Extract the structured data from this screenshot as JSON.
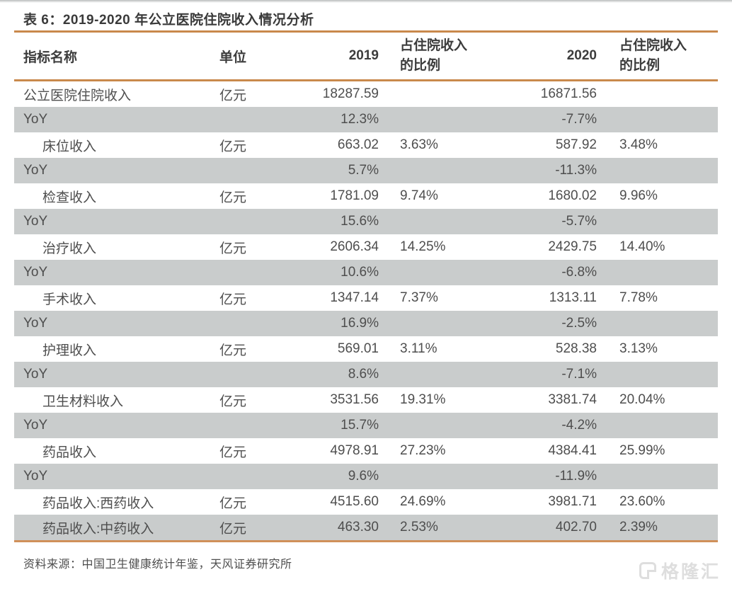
{
  "table": {
    "title": "表 6：2019-2020 年公立医院住院收入情况分析",
    "columns": [
      "指标名称",
      "单位",
      "2019",
      "占住院收入的比例",
      "2020",
      "占住院收入的比例"
    ],
    "rows": [
      {
        "name": "公立医院住院收入",
        "indent": false,
        "unit": "亿元",
        "v2019": "18287.59",
        "p2019": "",
        "v2020": "16871.56",
        "p2020": "",
        "shaded": false
      },
      {
        "name": "YoY",
        "indent": false,
        "unit": "",
        "v2019": "12.3%",
        "p2019": "",
        "v2020": "-7.7%",
        "p2020": "",
        "shaded": true
      },
      {
        "name": "床位收入",
        "indent": true,
        "unit": "亿元",
        "v2019": "663.02",
        "p2019": "3.63%",
        "v2020": "587.92",
        "p2020": "3.48%",
        "shaded": false
      },
      {
        "name": "YoY",
        "indent": false,
        "unit": "",
        "v2019": "5.7%",
        "p2019": "",
        "v2020": "-11.3%",
        "p2020": "",
        "shaded": true
      },
      {
        "name": "检查收入",
        "indent": true,
        "unit": "亿元",
        "v2019": "1781.09",
        "p2019": "9.74%",
        "v2020": "1680.02",
        "p2020": "9.96%",
        "shaded": false
      },
      {
        "name": "YoY",
        "indent": false,
        "unit": "",
        "v2019": "15.6%",
        "p2019": "",
        "v2020": "-5.7%",
        "p2020": "",
        "shaded": true
      },
      {
        "name": "治疗收入",
        "indent": true,
        "unit": "亿元",
        "v2019": "2606.34",
        "p2019": "14.25%",
        "v2020": "2429.75",
        "p2020": "14.40%",
        "shaded": false
      },
      {
        "name": "YoY",
        "indent": false,
        "unit": "",
        "v2019": "10.6%",
        "p2019": "",
        "v2020": "-6.8%",
        "p2020": "",
        "shaded": true
      },
      {
        "name": "手术收入",
        "indent": true,
        "unit": "亿元",
        "v2019": "1347.14",
        "p2019": "7.37%",
        "v2020": "1313.11",
        "p2020": "7.78%",
        "shaded": false
      },
      {
        "name": "YoY",
        "indent": false,
        "unit": "",
        "v2019": "16.9%",
        "p2019": "",
        "v2020": "-2.5%",
        "p2020": "",
        "shaded": true
      },
      {
        "name": "护理收入",
        "indent": true,
        "unit": "亿元",
        "v2019": "569.01",
        "p2019": "3.11%",
        "v2020": "528.38",
        "p2020": "3.13%",
        "shaded": false
      },
      {
        "name": "YoY",
        "indent": false,
        "unit": "",
        "v2019": "8.6%",
        "p2019": "",
        "v2020": "-7.1%",
        "p2020": "",
        "shaded": true
      },
      {
        "name": "卫生材料收入",
        "indent": true,
        "unit": "亿元",
        "v2019": "3531.56",
        "p2019": "19.31%",
        "v2020": "3381.74",
        "p2020": "20.04%",
        "shaded": false
      },
      {
        "name": "YoY",
        "indent": false,
        "unit": "",
        "v2019": "15.7%",
        "p2019": "",
        "v2020": "-4.2%",
        "p2020": "",
        "shaded": true
      },
      {
        "name": "药品收入",
        "indent": true,
        "unit": "亿元",
        "v2019": "4978.91",
        "p2019": "27.23%",
        "v2020": "4384.41",
        "p2020": "25.99%",
        "shaded": false
      },
      {
        "name": "YoY",
        "indent": false,
        "unit": "",
        "v2019": "9.6%",
        "p2019": "",
        "v2020": "-11.9%",
        "p2020": "",
        "shaded": true
      },
      {
        "name": "药品收入:西药收入",
        "indent": true,
        "unit": "亿元",
        "v2019": "4515.60",
        "p2019": "24.69%",
        "v2020": "3981.71",
        "p2020": "23.60%",
        "shaded": false
      },
      {
        "name": "药品收入:中药收入",
        "indent": true,
        "unit": "亿元",
        "v2019": "463.30",
        "p2019": "2.53%",
        "v2020": "402.70",
        "p2020": "2.39%",
        "shaded": true
      }
    ],
    "source": "资料来源：中国卫生健康统计年鉴，天风证券研究所"
  },
  "watermark": {
    "text": "格隆汇"
  },
  "colors": {
    "accent_orange": "#C9894C",
    "row_shade_gray": "#C9CCCC",
    "body_text": "#4E4E4E",
    "watermark_gray": "#DEDEDE"
  }
}
